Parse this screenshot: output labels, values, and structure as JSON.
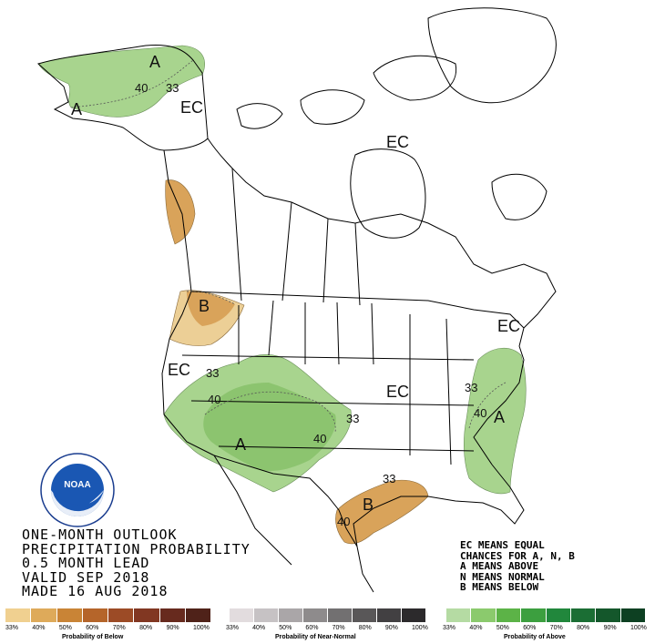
{
  "title_lines": [
    "ONE-MONTH OUTLOOK",
    "PRECIPITATION PROBABILITY",
    "0.5 MONTH LEAD",
    "VALID SEP 2018",
    "MADE 16 AUG 2018"
  ],
  "legend_lines": [
    "EC MEANS EQUAL",
    "CHANCES FOR A, N, B",
    "A MEANS ABOVE",
    "N MEANS NORMAL",
    "B MEANS BELOW"
  ],
  "logo": {
    "text": "NOAA",
    "ring_text": "NATIONAL OCEANIC AND ATMOSPHERIC ADMINISTRATION · U.S. DEPARTMENT OF COMMERCE"
  },
  "map_labels": {
    "ec_alaska": "EC",
    "a_alaska_north": "A",
    "a_alaska_west": "A",
    "c40_alaska": "40",
    "c33_alaska": "33",
    "ec_canada": "EC",
    "b_northwest": "B",
    "ec_west": "EC",
    "c33_west": "33",
    "c40_southwest": "40",
    "a_southwest": "A",
    "c40_plains": "40",
    "c33_plains": "33",
    "ec_central": "EC",
    "c33_east": "33",
    "c40_east": "40",
    "a_east": "A",
    "ec_northeast": "EC",
    "c33_texas": "33",
    "b_texas": "B",
    "c40_texas": "40"
  },
  "scales": {
    "below": {
      "caption": "Probability of Below",
      "ticks": [
        "33%",
        "40%",
        "50%",
        "60%",
        "70%",
        "80%",
        "90%",
        "100%"
      ],
      "colors": [
        "#f0d090",
        "#deaa5a",
        "#c98436",
        "#b5652a",
        "#9c4b26",
        "#813722",
        "#672a1e",
        "#4f2219"
      ]
    },
    "normal": {
      "caption": "Probability of Near-Normal",
      "ticks": [
        "33%",
        "40%",
        "50%",
        "60%",
        "70%",
        "80%",
        "90%",
        "100%"
      ],
      "colors": [
        "#e2dcde",
        "#c6c2c4",
        "#aaa6a8",
        "#8e8b8c",
        "#727071",
        "#595758",
        "#424042",
        "#2c2a2c"
      ]
    },
    "above": {
      "caption": "Probability of Above",
      "ticks": [
        "33%",
        "40%",
        "50%",
        "60%",
        "70%",
        "80%",
        "90%",
        "100%"
      ],
      "colors": [
        "#b5dba3",
        "#8bca6d",
        "#5cb347",
        "#3c9f3f",
        "#21873c",
        "#1b6e34",
        "#14572b",
        "#0d4022"
      ]
    }
  },
  "colors": {
    "above_40": "#a8d48e",
    "above_33": "#c6e3b4",
    "below_40": "#d9a35a",
    "below_33": "#eccf96",
    "boundary": "#000000"
  }
}
